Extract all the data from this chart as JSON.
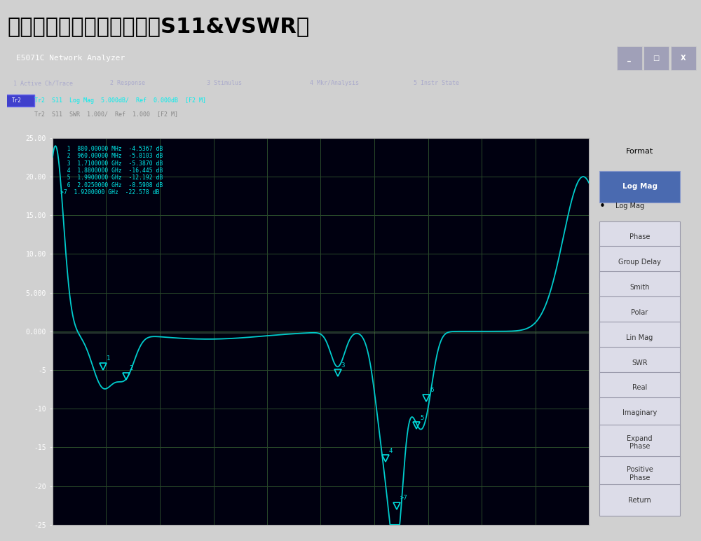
{
  "title": "网络分析仪量测天线参数（S11&VSWR）",
  "title_fontsize": 22,
  "window_title": "E5071C Network Analyzer",
  "menu_items": [
    "1 Active Ch/Trace",
    "2 Response",
    "3 Stimulus",
    "4 Mkr/Analysis",
    "5 Instr State"
  ],
  "trace_label1": "Tr2  S11  Log Mag  5.000dB/  Ref  0.000dB  [F2 M]",
  "trace_label2": "Tr2  S11  SWR  1.000/  Ref  1.000  [F2 M]",
  "plot_bg": "#000010",
  "grid_color": "#2a4a2a",
  "curve_color": "#00cccc",
  "ymin": -25,
  "ymax": 25,
  "yticks": [
    -25,
    -20,
    -15,
    -10,
    -5,
    0,
    5,
    10,
    15,
    20,
    25
  ],
  "ylabels": [
    "-25",
    "-20",
    "-15",
    "-10",
    "-5",
    "0.000",
    "5.000",
    "10.00",
    "15.00",
    "20.00",
    "25.00"
  ],
  "xmin": 0.7,
  "xmax": 2.6,
  "markers": [
    {
      "num": 1,
      "freq_ghz": 0.88,
      "val_db": -4.5367
    },
    {
      "num": 2,
      "freq_ghz": 0.96,
      "val_db": -5.8103
    },
    {
      "num": 3,
      "freq_ghz": 1.71,
      "val_db": -5.387
    },
    {
      "num": 4,
      "freq_ghz": 1.88,
      "val_db": -16.445
    },
    {
      "num": 5,
      "freq_ghz": 1.99,
      "val_db": -12.192
    },
    {
      "num": 6,
      "freq_ghz": 2.025,
      "val_db": -8.5908
    },
    {
      "num": 7,
      "freq_ghz": 1.92,
      "val_db": -22.578
    }
  ],
  "info_lines": [
    "  1  880.00000 MHz  -4.5367 dB",
    "  2  960.00000 MHz  -5.8103 dB",
    "  3  1.7100000 GHz  -5.3870 dB",
    "  4  1.8800000 GHz  -16.445 dB",
    "  5  1.9900000 GHz  -12.192 dB",
    "  6  2.0250000 GHz  -8.5908 dB",
    ">7  1.9200000 GHz  -22.578 dB"
  ],
  "right_panel_bg": "#c8c8d8",
  "btn_labels": [
    "Log Mag",
    "Phase",
    "Group Delay",
    "Smith",
    "Polar",
    "Lin Mag",
    "SWR",
    "Real",
    "Imaginary",
    "Expand Phase",
    "Positive Phase",
    "Return"
  ]
}
